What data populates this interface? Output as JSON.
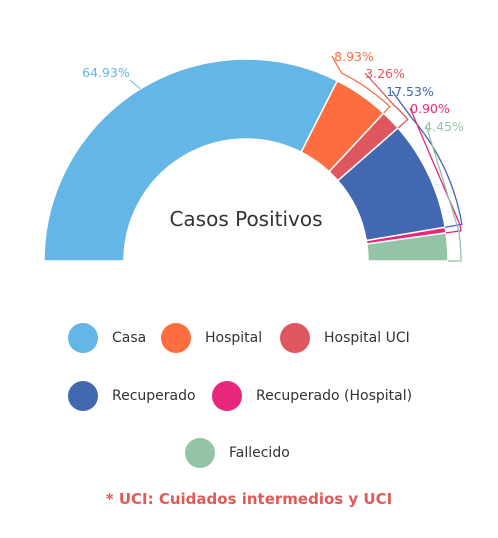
{
  "chart_data": {
    "type": "pie",
    "title": "Casos Positivos",
    "series": [
      {
        "name": "Casa",
        "value": 64.93,
        "label": "64.93%",
        "color": "#63b6e6"
      },
      {
        "name": "Hospital",
        "value": 8.93,
        "label": "8.93%",
        "color": "#fd6d3f"
      },
      {
        "name": "Hospital UCI",
        "value": 3.26,
        "label": "3.26%",
        "color": "#de565e"
      },
      {
        "name": "Recuperado",
        "value": 17.53,
        "label": "17.53%",
        "color": "#4168b0"
      },
      {
        "name": "Recuperado (Hospital)",
        "value": 0.9,
        "label": "0.90%",
        "color": "#e8267a"
      },
      {
        "name": "Fallecido",
        "value": 4.45,
        "label": "4.45%",
        "color": "#93c4a6"
      }
    ],
    "legend_position": "bottom"
  },
  "footnote": "* UCI: Cuidados intermedios y UCI"
}
